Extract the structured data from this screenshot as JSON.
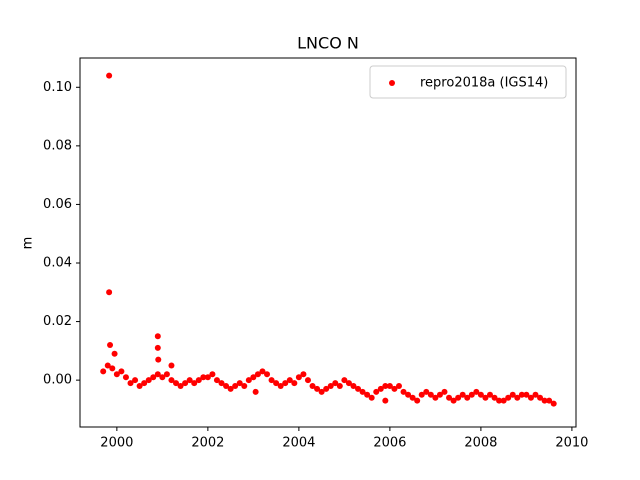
{
  "chart_data": {
    "type": "scatter",
    "title": "LNCO N",
    "y_label": "m",
    "xlim": [
      1999.19,
      2010.09
    ],
    "ylim": [
      -0.016,
      0.11
    ],
    "xticks": [
      2000,
      2002,
      2004,
      2006,
      2008,
      2010
    ],
    "yticks": [
      {
        "value": 0,
        "label": "0.00"
      },
      {
        "value": 0.02,
        "label": "0.02"
      },
      {
        "value": 0.04,
        "label": "0.04"
      },
      {
        "value": 0.06,
        "label": "0.06"
      },
      {
        "value": 0.08,
        "label": "0.08"
      },
      {
        "value": 0.1,
        "label": "0.10"
      }
    ],
    "grid": false,
    "legend": "upper right",
    "series": [
      {
        "name": "repro2018a (IGS14)",
        "color": "#ff0000",
        "x": [
          1999.7,
          1999.8,
          1999.9,
          2000.0,
          2000.1,
          2000.2,
          2000.3,
          2000.4,
          2000.5,
          2000.6,
          2000.7,
          2000.8,
          2000.9,
          2001.0,
          2001.1,
          2001.2,
          2001.3,
          2001.4,
          2001.5,
          2001.6,
          2001.7,
          2001.8,
          2001.9,
          2002.0,
          2002.1,
          2002.2,
          2002.3,
          2002.4,
          2002.5,
          2002.6,
          2002.7,
          2002.8,
          2002.9,
          2003.0,
          2003.1,
          2003.2,
          2003.3,
          2003.4,
          2003.5,
          2003.6,
          2003.7,
          2003.8,
          2003.9,
          2004.0,
          2004.1,
          2004.2,
          2004.3,
          2004.4,
          2004.5,
          2004.6,
          2004.7,
          2004.8,
          2004.9,
          2005.0,
          2005.1,
          2005.2,
          2005.3,
          2005.4,
          2005.5,
          2005.6,
          2005.7,
          2005.8,
          2005.9,
          2006.0,
          2006.1,
          2006.2,
          2006.3,
          2006.4,
          2006.5,
          2006.6,
          2006.7,
          2006.8,
          2006.9,
          2007.0,
          2007.1,
          2007.2,
          2007.3,
          2007.4,
          2007.5,
          2007.6,
          2007.7,
          2007.8,
          2007.9,
          2008.0,
          2008.1,
          2008.2,
          2008.3,
          2008.4,
          2008.5,
          2008.6,
          2008.7,
          2008.8,
          2008.9,
          2009.0,
          2009.1,
          2009.2,
          2009.3,
          2009.4,
          2009.5,
          2009.6,
          1999.83,
          1999.83,
          1999.85,
          1999.95,
          2000.9,
          2000.9,
          2000.91,
          2001.2,
          2003.05,
          2005.9
        ],
        "values": [
          0.003,
          0.005,
          0.004,
          0.002,
          0.003,
          0.001,
          -0.001,
          0.0,
          -0.002,
          -0.001,
          0.0,
          0.001,
          0.002,
          0.001,
          0.002,
          0.0,
          -0.001,
          -0.002,
          -0.001,
          0.0,
          -0.001,
          0.0,
          0.001,
          0.001,
          0.002,
          0.0,
          -0.001,
          -0.002,
          -0.003,
          -0.002,
          -0.001,
          -0.002,
          0.0,
          0.001,
          0.002,
          0.003,
          0.002,
          0.0,
          -0.001,
          -0.002,
          -0.001,
          0.0,
          -0.001,
          0.001,
          0.002,
          0.0,
          -0.002,
          -0.003,
          -0.004,
          -0.003,
          -0.002,
          -0.001,
          -0.002,
          0.0,
          -0.001,
          -0.002,
          -0.003,
          -0.004,
          -0.005,
          -0.006,
          -0.004,
          -0.003,
          -0.002,
          -0.002,
          -0.003,
          -0.002,
          -0.004,
          -0.005,
          -0.006,
          -0.007,
          -0.005,
          -0.004,
          -0.005,
          -0.006,
          -0.005,
          -0.004,
          -0.006,
          -0.007,
          -0.006,
          -0.005,
          -0.006,
          -0.005,
          -0.004,
          -0.005,
          -0.006,
          -0.005,
          -0.006,
          -0.007,
          -0.007,
          -0.006,
          -0.005,
          -0.006,
          -0.005,
          -0.005,
          -0.006,
          -0.005,
          -0.006,
          -0.007,
          -0.007,
          -0.008,
          0.104,
          0.03,
          0.012,
          0.009,
          0.015,
          0.011,
          0.007,
          0.005,
          -0.004,
          -0.007
        ]
      }
    ]
  }
}
